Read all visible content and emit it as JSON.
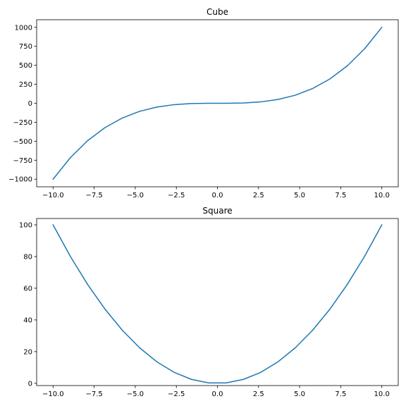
{
  "chart_data": [
    {
      "type": "line",
      "title": "Cube",
      "xlabel": "",
      "ylabel": "",
      "xlim": [
        -11.0,
        11.0
      ],
      "ylim": [
        -1100,
        1100
      ],
      "grid": false,
      "x": [
        -10.0,
        -8.947,
        -7.895,
        -6.842,
        -5.789,
        -4.737,
        -3.684,
        -2.632,
        -1.579,
        -0.526,
        0.526,
        1.579,
        2.632,
        3.684,
        4.737,
        5.789,
        6.842,
        7.895,
        8.947,
        10.0
      ],
      "series": [
        {
          "color": "#1f77b4",
          "values": [
            -1000,
            -716,
            -492,
            -320,
            -194,
            -106,
            -50,
            -18,
            -4,
            0,
            0,
            4,
            18,
            50,
            106,
            194,
            320,
            492,
            716,
            1000
          ]
        }
      ],
      "xticks": [
        -10.0,
        -7.5,
        -5.0,
        -2.5,
        0.0,
        2.5,
        5.0,
        7.5,
        10.0
      ],
      "xtick_labels": [
        "−10.0",
        "−7.5",
        "−5.0",
        "−2.5",
        "0.0",
        "2.5",
        "5.0",
        "7.5",
        "10.0"
      ],
      "yticks": [
        -1000,
        -750,
        -500,
        -250,
        0,
        250,
        500,
        750,
        1000
      ],
      "ytick_labels": [
        "−1000",
        "−750",
        "−500",
        "−250",
        "0",
        "250",
        "500",
        "750",
        "1000"
      ]
    },
    {
      "type": "line",
      "title": "Square",
      "xlabel": "",
      "ylabel": "",
      "xlim": [
        -11.0,
        11.0
      ],
      "ylim": [
        -1.4,
        104.0
      ],
      "grid": false,
      "x": [
        -10.0,
        -8.947,
        -7.895,
        -6.842,
        -5.789,
        -4.737,
        -3.684,
        -2.632,
        -1.579,
        -0.526,
        0.526,
        1.579,
        2.632,
        3.684,
        4.737,
        5.789,
        6.842,
        7.895,
        8.947,
        10.0
      ],
      "series": [
        {
          "color": "#1f77b4",
          "values": [
            100.0,
            80.05,
            62.33,
            46.81,
            33.52,
            22.44,
            13.57,
            6.93,
            2.49,
            0.28,
            0.28,
            2.49,
            6.93,
            13.57,
            22.44,
            33.52,
            46.81,
            62.33,
            80.05,
            100.0
          ]
        }
      ],
      "xticks": [
        -10.0,
        -7.5,
        -5.0,
        -2.5,
        0.0,
        2.5,
        5.0,
        7.5,
        10.0
      ],
      "xtick_labels": [
        "−10.0",
        "−7.5",
        "−5.0",
        "−2.5",
        "0.0",
        "2.5",
        "5.0",
        "7.5",
        "10.0"
      ],
      "yticks": [
        0,
        20,
        40,
        60,
        80,
        100
      ],
      "ytick_labels": [
        "0",
        "20",
        "40",
        "60",
        "80",
        "100"
      ]
    }
  ]
}
